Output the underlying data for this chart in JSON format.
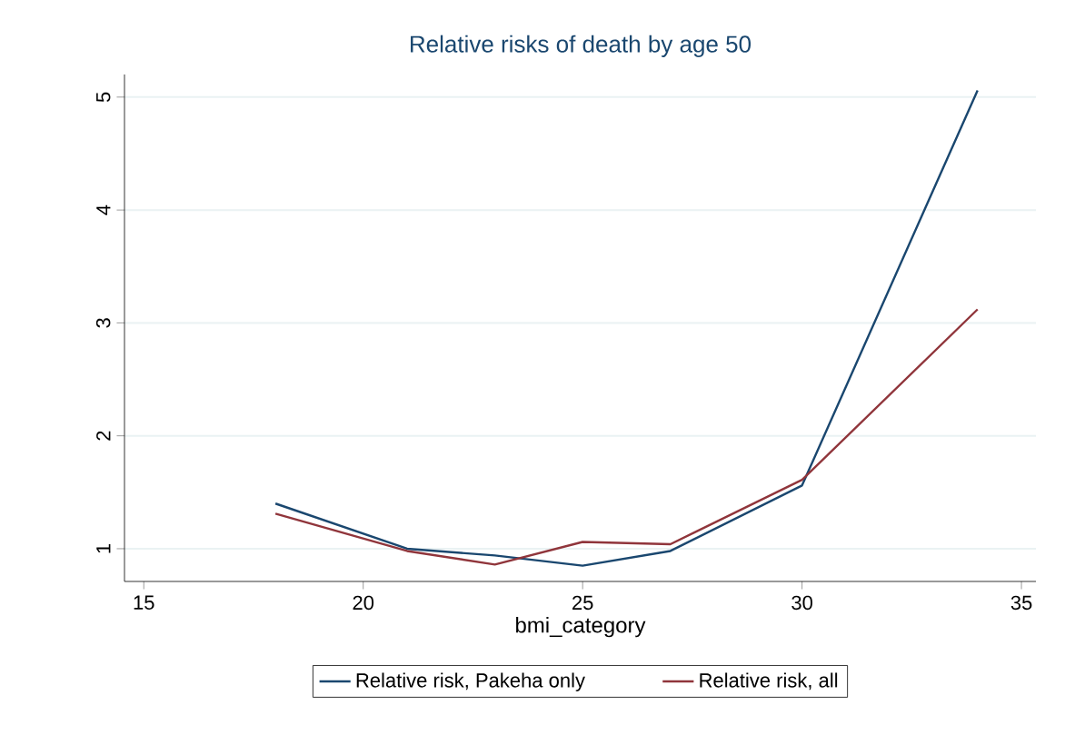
{
  "chart_data": {
    "type": "line",
    "title": "Relative risks of death by age 50",
    "xlabel": "bmi_category",
    "x": [
      18,
      21,
      23,
      25,
      27,
      30,
      34
    ],
    "series": [
      {
        "name": "Relative risk, Pakeha only",
        "color": "#1a476f",
        "values": [
          1.4,
          1.0,
          0.94,
          0.85,
          0.98,
          1.56,
          5.06
        ]
      },
      {
        "name": "Relative risk, all",
        "color": "#90353b",
        "values": [
          1.31,
          0.98,
          0.86,
          1.06,
          1.04,
          1.61,
          3.12
        ]
      }
    ],
    "xlim": [
      14.56,
      35.33
    ],
    "ylim": [
      0.71,
      5.2
    ],
    "xticks": [
      15,
      20,
      25,
      30,
      35
    ],
    "yticks": [
      1,
      2,
      3,
      4,
      5
    ],
    "grid": "y",
    "legend": "bottom"
  }
}
